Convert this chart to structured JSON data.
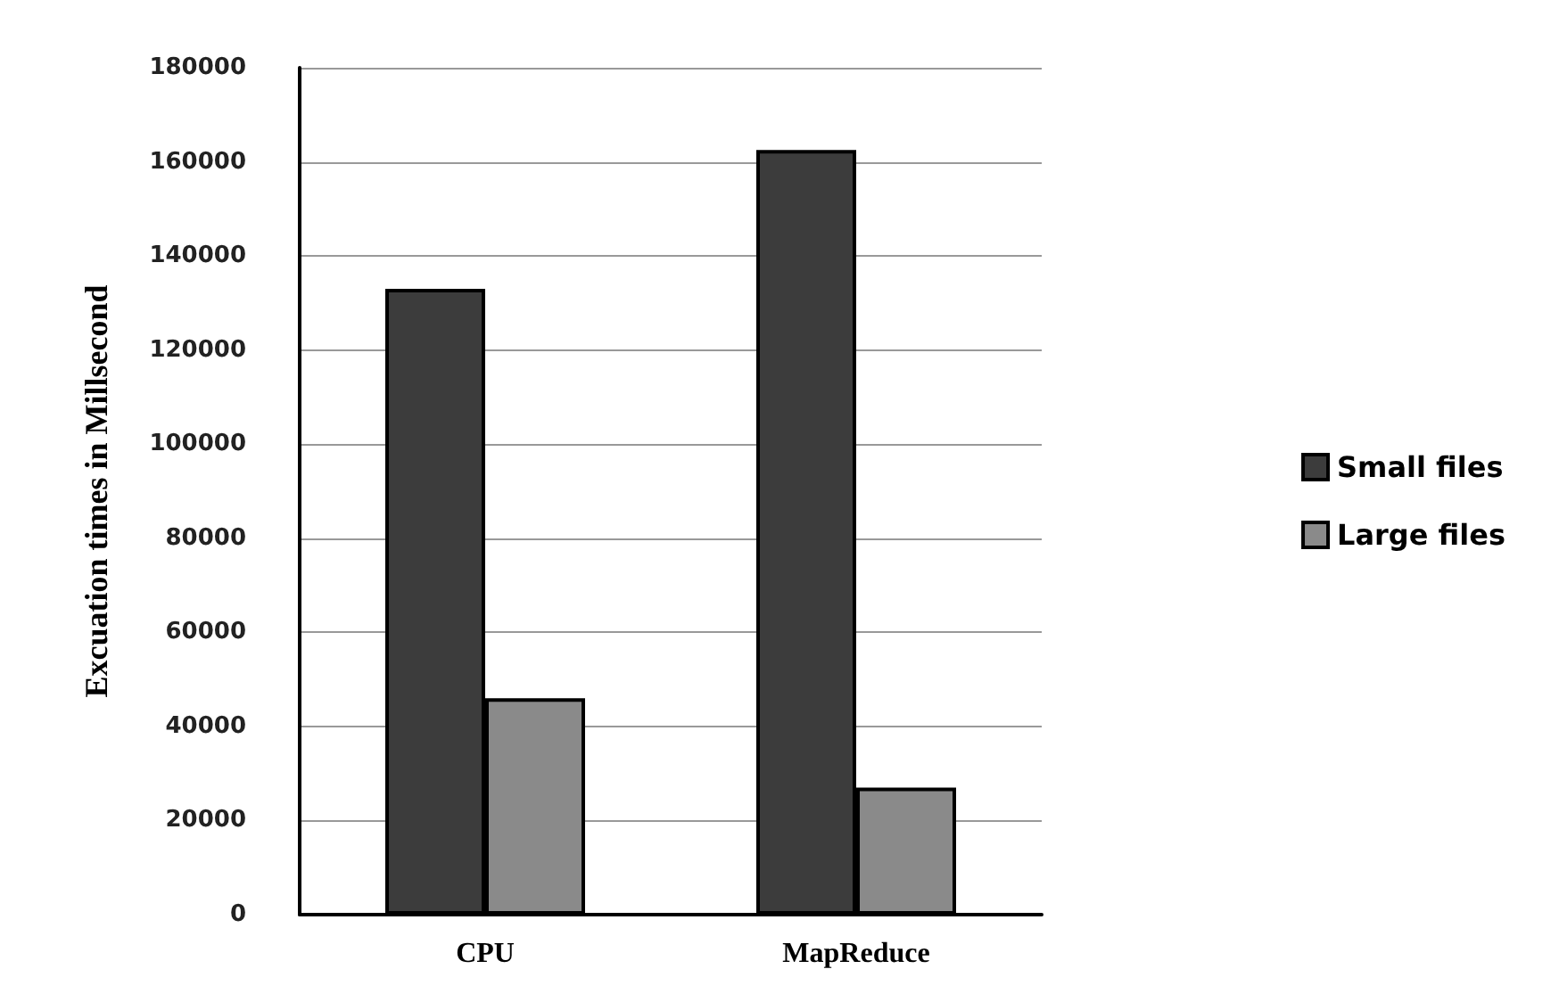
{
  "chart_data": {
    "type": "bar",
    "ylabel": "Excuation times in Millsecond",
    "categories": [
      "CPU",
      "MapReduce"
    ],
    "series": [
      {
        "name": "Small files",
        "color": "#3c3c3c",
        "values": [
          133000,
          162500
        ]
      },
      {
        "name": "Large files",
        "color": "#8a8a8a",
        "values": [
          46000,
          27000
        ]
      }
    ],
    "ylim": [
      0,
      180000
    ],
    "yticks": [
      0,
      20000,
      40000,
      60000,
      80000,
      100000,
      120000,
      140000,
      160000,
      180000
    ],
    "grid": "y",
    "legend": "right"
  }
}
